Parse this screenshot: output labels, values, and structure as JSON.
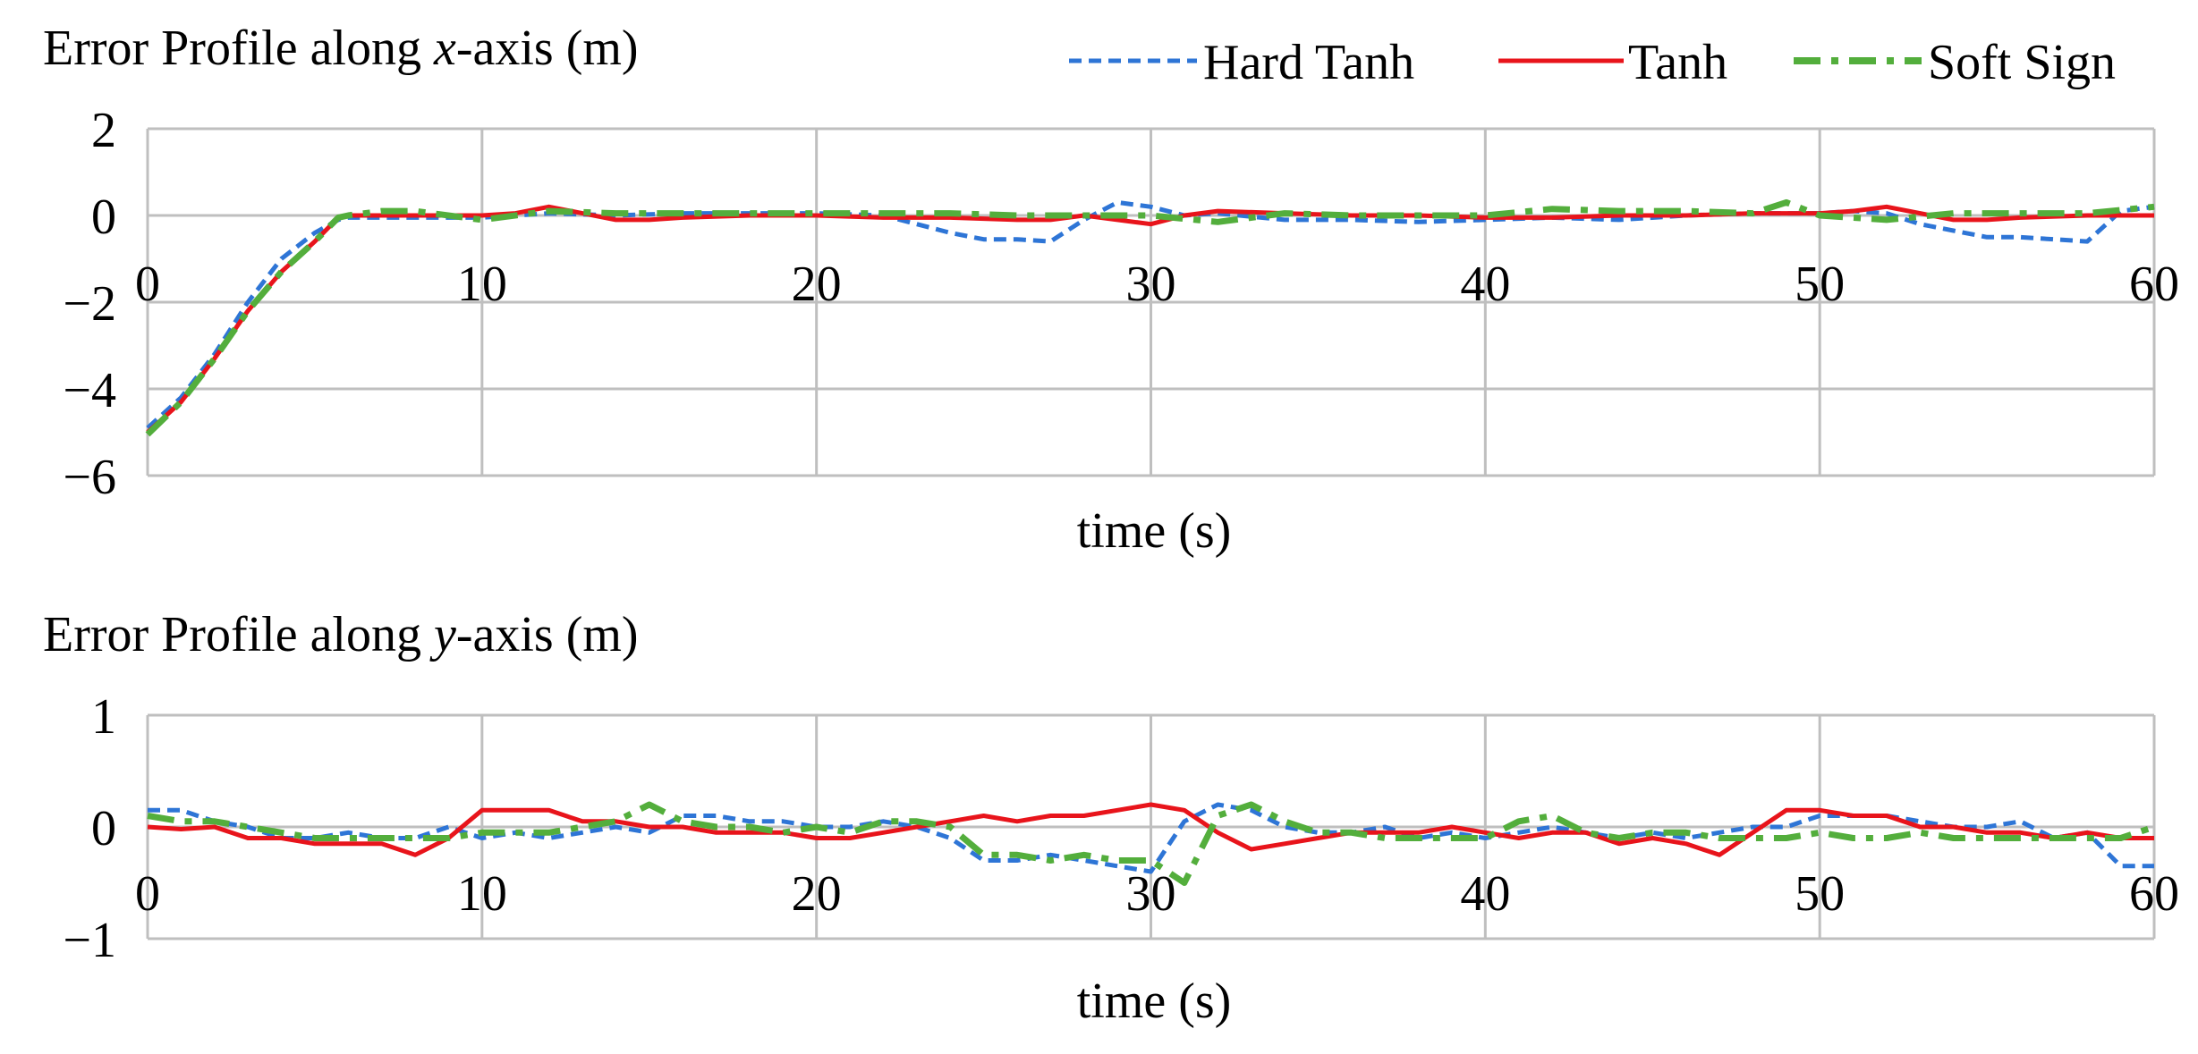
{
  "legend": [
    {
      "name": "Hard Tanh",
      "color": "#2E75D6",
      "dash": "dashed"
    },
    {
      "name": "Tanh",
      "color": "#E8141B",
      "dash": "solid"
    },
    {
      "name": "Soft Sign",
      "color": "#53AE3C",
      "dash": "dashdot"
    }
  ],
  "chart_data": [
    {
      "type": "line",
      "title_prefix": "Error Profile along ",
      "title_var": "x",
      "title_suffix": "-axis (m)",
      "xlabel": "time (s)",
      "ylabel": "",
      "xlim": [
        0,
        60
      ],
      "ylim": [
        -6,
        2
      ],
      "xticks": [
        0,
        10,
        20,
        30,
        40,
        50,
        60
      ],
      "yticks": [
        2,
        0,
        -2,
        -4,
        -6
      ],
      "ytick_labels": [
        "2",
        "0",
        "−2",
        "−4",
        "−6"
      ],
      "grid": true,
      "series": [
        {
          "name": "Hard Tanh",
          "color": "#2E75D6",
          "dash": "dashed",
          "x": [
            0,
            1,
            2,
            3,
            4,
            5,
            5.7,
            6,
            8,
            10,
            12,
            14,
            16,
            18,
            20,
            22,
            23,
            24,
            25,
            26,
            27,
            28,
            29,
            30,
            31,
            32,
            34,
            36,
            38,
            40,
            42,
            44,
            46,
            48,
            50,
            51,
            52,
            53,
            54,
            55,
            56,
            57,
            58,
            59,
            60
          ],
          "y": [
            -4.9,
            -4.2,
            -3.2,
            -2.0,
            -1.0,
            -0.4,
            -0.1,
            -0.05,
            -0.05,
            -0.05,
            0.05,
            0.0,
            0.05,
            0.05,
            0.05,
            0.0,
            -0.2,
            -0.4,
            -0.55,
            -0.55,
            -0.6,
            -0.1,
            0.3,
            0.2,
            0.0,
            0.05,
            -0.1,
            -0.1,
            -0.15,
            -0.1,
            -0.05,
            -0.1,
            0.0,
            0.05,
            0.05,
            0.1,
            0.05,
            -0.2,
            -0.35,
            -0.5,
            -0.5,
            -0.55,
            -0.6,
            0.1,
            0.2
          ]
        },
        {
          "name": "Tanh",
          "color": "#E8141B",
          "dash": "solid",
          "x": [
            0,
            1,
            2,
            3,
            4,
            5,
            5.7,
            6,
            8,
            10,
            11,
            12,
            13,
            14,
            15,
            16,
            18,
            20,
            22,
            24,
            26,
            27,
            28,
            29,
            30,
            31,
            32,
            34,
            36,
            38,
            40,
            42,
            44,
            46,
            48,
            50,
            51,
            52,
            53,
            54,
            55,
            56,
            58,
            60
          ],
          "y": [
            -5.0,
            -4.3,
            -3.3,
            -2.2,
            -1.3,
            -0.6,
            -0.05,
            0.0,
            0.0,
            0.0,
            0.05,
            0.2,
            0.05,
            -0.1,
            -0.1,
            -0.05,
            0.0,
            0.0,
            -0.05,
            -0.05,
            -0.1,
            -0.1,
            0.0,
            -0.1,
            -0.2,
            0.0,
            0.1,
            0.05,
            0.0,
            0.0,
            -0.05,
            -0.05,
            0.0,
            0.0,
            0.05,
            0.05,
            0.1,
            0.2,
            0.05,
            -0.1,
            -0.1,
            -0.05,
            0.0,
            0.0
          ]
        },
        {
          "name": "Soft Sign",
          "color": "#53AE3C",
          "dash": "dashdot",
          "x": [
            0,
            1,
            2,
            3,
            4,
            5,
            5.7,
            6,
            7,
            8,
            10,
            12,
            14,
            16,
            18,
            20,
            22,
            24,
            26,
            28,
            30,
            32,
            34,
            36,
            38,
            40,
            42,
            44,
            46,
            48,
            49,
            50,
            52,
            54,
            56,
            58,
            60
          ],
          "y": [
            -5.05,
            -4.3,
            -3.3,
            -2.2,
            -1.3,
            -0.6,
            -0.05,
            0.0,
            0.1,
            0.1,
            -0.1,
            0.1,
            0.05,
            0.05,
            0.05,
            0.05,
            0.05,
            0.05,
            0.0,
            0.0,
            0.0,
            -0.15,
            0.05,
            0.0,
            0.0,
            0.0,
            0.15,
            0.1,
            0.1,
            0.05,
            0.3,
            0.0,
            -0.1,
            0.05,
            0.05,
            0.05,
            0.2
          ]
        }
      ]
    },
    {
      "type": "line",
      "title_prefix": "Error Profile along ",
      "title_var": "y",
      "title_suffix": "-axis (m)",
      "xlabel": "time (s)",
      "ylabel": "",
      "xlim": [
        0,
        60
      ],
      "ylim": [
        -1,
        1
      ],
      "xticks": [
        0,
        10,
        20,
        30,
        40,
        50,
        60
      ],
      "yticks": [
        1,
        0,
        -1
      ],
      "ytick_labels": [
        "1",
        "0",
        "−1"
      ],
      "grid": true,
      "series": [
        {
          "name": "Hard Tanh",
          "color": "#2E75D6",
          "dash": "dashed",
          "x": [
            0,
            1,
            2,
            3,
            4,
            5,
            6,
            7,
            8,
            9,
            10,
            11,
            12,
            13,
            14,
            15,
            16,
            17,
            18,
            19,
            20,
            21,
            22,
            23,
            24,
            25,
            26,
            27,
            28,
            29,
            30,
            31,
            32,
            33,
            34,
            35,
            36,
            37,
            38,
            39,
            40,
            41,
            42,
            43,
            44,
            45,
            46,
            47,
            48,
            49,
            50,
            51,
            52,
            53,
            54,
            55,
            56,
            57,
            58,
            59,
            60
          ],
          "y": [
            0.15,
            0.15,
            0.05,
            0.0,
            -0.1,
            -0.1,
            -0.05,
            -0.1,
            -0.1,
            0.0,
            -0.1,
            -0.05,
            -0.1,
            -0.05,
            0.0,
            -0.05,
            0.1,
            0.1,
            0.05,
            0.05,
            0.0,
            0.0,
            0.05,
            0.0,
            -0.1,
            -0.3,
            -0.3,
            -0.25,
            -0.3,
            -0.35,
            -0.4,
            0.05,
            0.2,
            0.15,
            0.0,
            -0.05,
            -0.05,
            0.0,
            -0.1,
            -0.05,
            -0.1,
            -0.05,
            0.0,
            -0.05,
            -0.1,
            -0.05,
            -0.1,
            -0.05,
            0.0,
            0.0,
            0.1,
            0.1,
            0.1,
            0.05,
            0.0,
            0.0,
            0.05,
            -0.1,
            -0.05,
            -0.35,
            -0.35
          ]
        },
        {
          "name": "Tanh",
          "color": "#E8141B",
          "dash": "solid",
          "x": [
            0,
            1,
            2,
            3,
            4,
            5,
            6,
            7,
            8,
            9,
            10,
            11,
            12,
            13,
            14,
            15,
            16,
            17,
            18,
            19,
            20,
            21,
            22,
            23,
            24,
            25,
            26,
            27,
            28,
            29,
            30,
            31,
            32,
            33,
            34,
            35,
            36,
            37,
            38,
            39,
            40,
            41,
            42,
            43,
            44,
            45,
            46,
            47,
            48,
            49,
            50,
            51,
            52,
            53,
            54,
            55,
            56,
            57,
            58,
            59,
            60
          ],
          "y": [
            0.0,
            -0.02,
            0.0,
            -0.1,
            -0.1,
            -0.15,
            -0.15,
            -0.15,
            -0.25,
            -0.1,
            0.15,
            0.15,
            0.15,
            0.05,
            0.05,
            0.0,
            0.0,
            -0.05,
            -0.05,
            -0.05,
            -0.1,
            -0.1,
            -0.05,
            0.0,
            0.05,
            0.1,
            0.05,
            0.1,
            0.1,
            0.15,
            0.2,
            0.15,
            -0.05,
            -0.2,
            -0.15,
            -0.1,
            -0.05,
            -0.05,
            -0.05,
            0.0,
            -0.05,
            -0.1,
            -0.05,
            -0.05,
            -0.15,
            -0.1,
            -0.15,
            -0.25,
            -0.05,
            0.15,
            0.15,
            0.1,
            0.1,
            0.0,
            0.0,
            -0.05,
            -0.05,
            -0.1,
            -0.05,
            -0.1,
            -0.1
          ]
        },
        {
          "name": "Soft Sign",
          "color": "#53AE3C",
          "dash": "dashdot",
          "x": [
            0,
            1,
            2,
            3,
            4,
            5,
            6,
            7,
            8,
            9,
            10,
            11,
            12,
            13,
            14,
            15,
            16,
            17,
            18,
            19,
            20,
            21,
            22,
            23,
            24,
            25,
            26,
            27,
            28,
            29,
            30,
            31,
            32,
            33,
            34,
            35,
            36,
            37,
            38,
            39,
            40,
            41,
            42,
            43,
            44,
            45,
            46,
            47,
            48,
            49,
            50,
            51,
            52,
            53,
            54,
            55,
            56,
            57,
            58,
            59,
            60
          ],
          "y": [
            0.1,
            0.05,
            0.05,
            0.0,
            -0.05,
            -0.1,
            -0.1,
            -0.1,
            -0.1,
            -0.1,
            -0.05,
            -0.05,
            -0.05,
            0.0,
            0.05,
            0.2,
            0.05,
            0.0,
            0.0,
            -0.05,
            0.0,
            -0.05,
            0.05,
            0.05,
            0.0,
            -0.25,
            -0.25,
            -0.3,
            -0.25,
            -0.3,
            -0.3,
            -0.5,
            0.1,
            0.2,
            0.05,
            -0.05,
            -0.05,
            -0.1,
            -0.1,
            -0.1,
            -0.1,
            0.05,
            0.1,
            -0.05,
            -0.1,
            -0.05,
            -0.05,
            -0.1,
            -0.1,
            -0.1,
            -0.05,
            -0.1,
            -0.1,
            -0.05,
            -0.1,
            -0.1,
            -0.1,
            -0.1,
            -0.1,
            -0.1,
            0.0
          ]
        }
      ]
    }
  ]
}
